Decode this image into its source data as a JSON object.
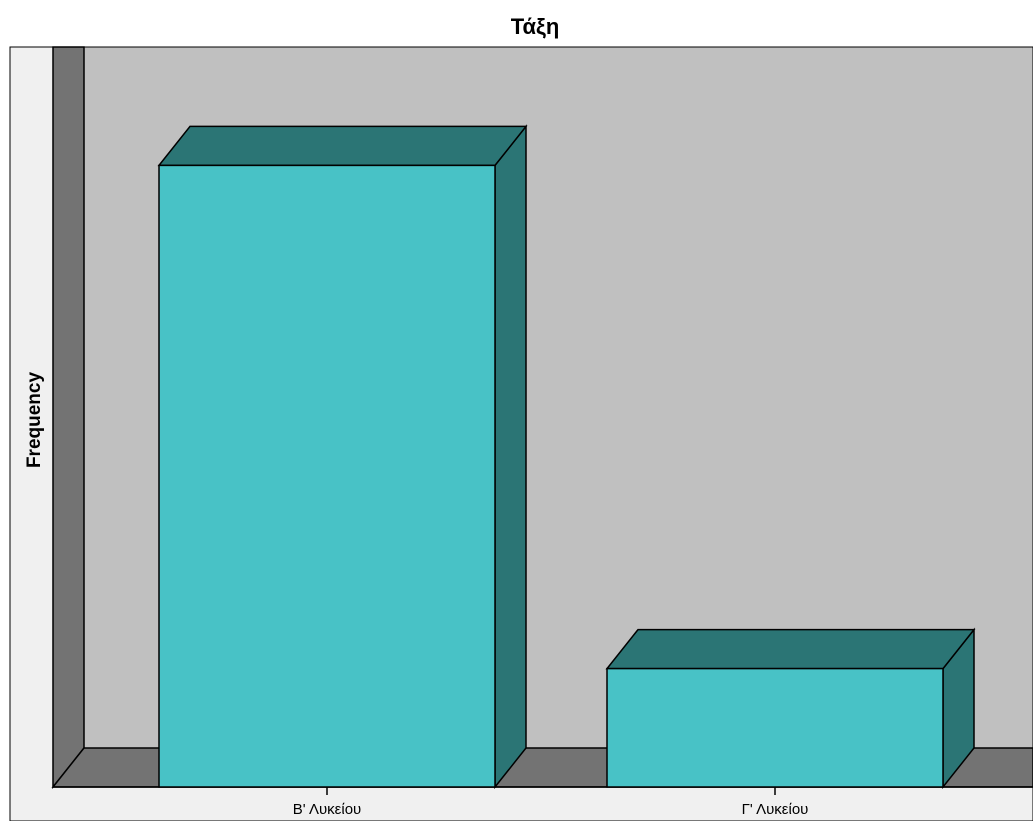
{
  "chart_data": {
    "type": "bar",
    "title": "Τάξη",
    "ylabel": "Frequency",
    "xlabel": "",
    "categories": [
      "Β' Λυκείου",
      "Γ' Λυκείου"
    ],
    "values": [
      84,
      16
    ],
    "ylim": [
      0,
      100
    ],
    "style": "3d",
    "grid": false
  },
  "colors": {
    "bar_front": "#48c2c6",
    "bar_top": "#2b7575",
    "bar_side": "#2b7575",
    "back_wall": "#c0c0c0",
    "left_wall": "#737373",
    "floor": "#737373",
    "page_background": "#f0f0f0"
  }
}
